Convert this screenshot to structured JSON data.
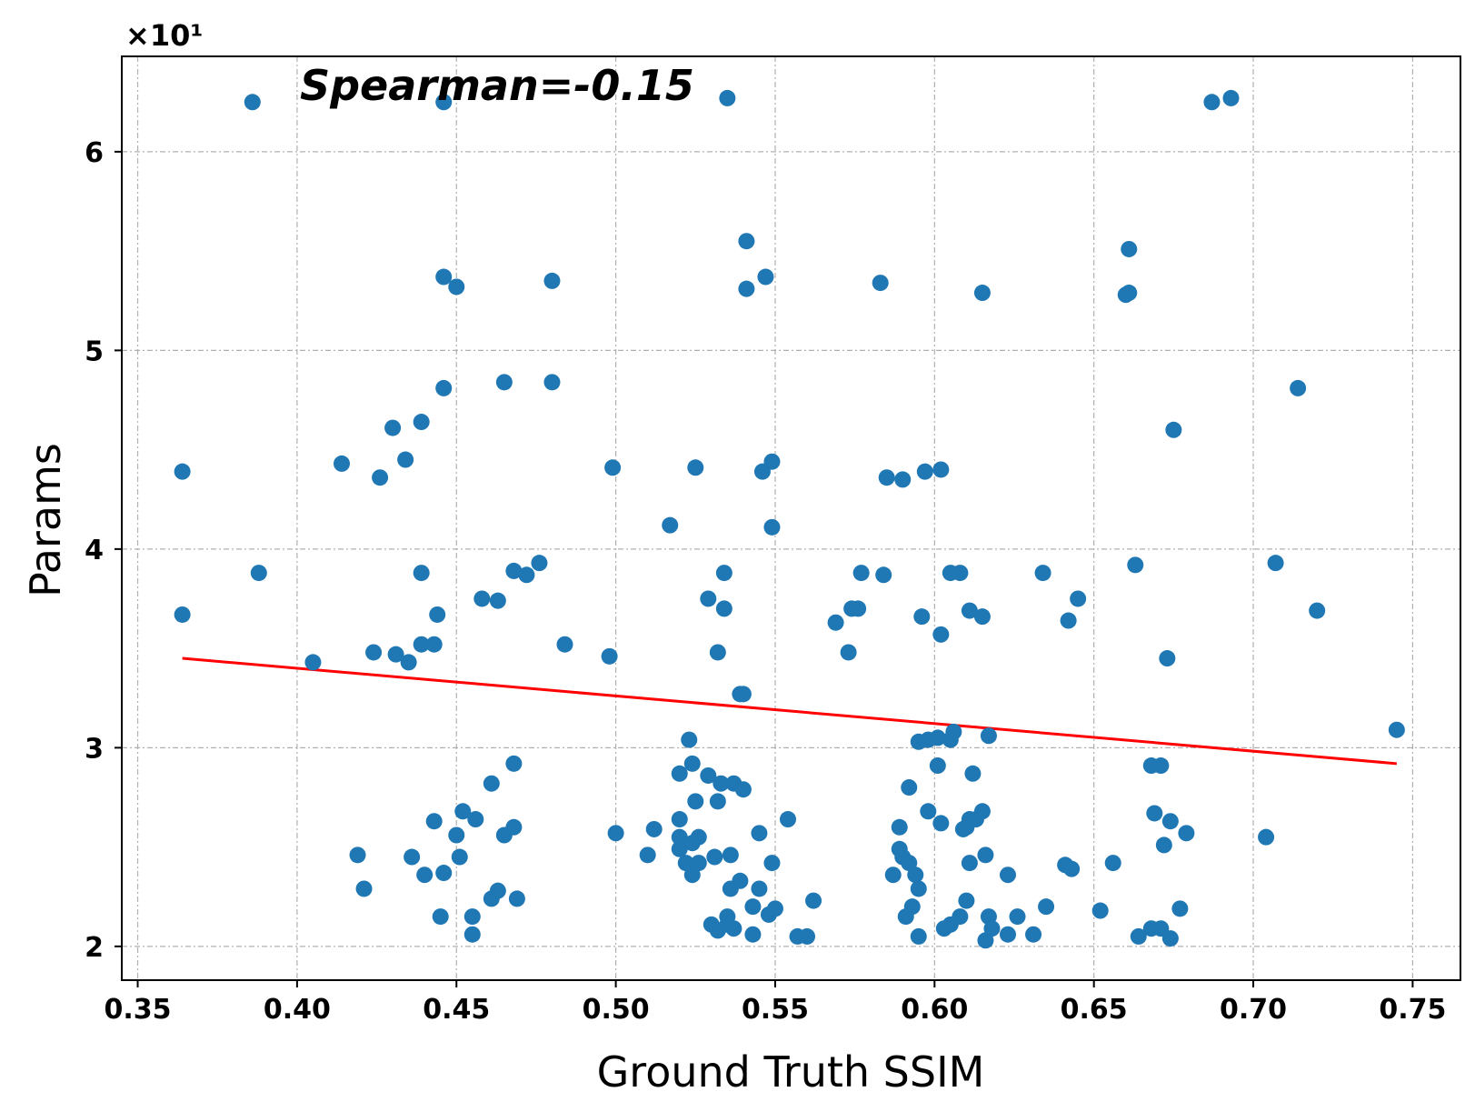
{
  "chart_data": {
    "type": "scatter",
    "title": "",
    "xlabel": "Ground Truth SSIM",
    "ylabel": "Params",
    "y_multiplier_label": "×10¹",
    "annotation": "Spearman=-0.15",
    "xlim": [
      0.345,
      0.765
    ],
    "ylim": [
      1.83,
      6.48
    ],
    "x_ticks": [
      0.35,
      0.4,
      0.45,
      0.5,
      0.55,
      0.6,
      0.65,
      0.7,
      0.75
    ],
    "x_tick_labels": [
      "0.35",
      "0.40",
      "0.45",
      "0.50",
      "0.55",
      "0.60",
      "0.65",
      "0.70",
      "0.75"
    ],
    "y_ticks": [
      2,
      3,
      4,
      5,
      6
    ],
    "y_tick_labels": [
      "2",
      "3",
      "4",
      "5",
      "6"
    ],
    "grid": true,
    "point_color": "#1f77b4",
    "trend_color": "#ff0000",
    "trend_line": {
      "x": [
        0.364,
        0.745
      ],
      "y": [
        3.45,
        2.92
      ]
    },
    "points": [
      [
        0.364,
        4.39
      ],
      [
        0.364,
        3.67
      ],
      [
        0.386,
        6.25
      ],
      [
        0.388,
        3.88
      ],
      [
        0.405,
        3.43
      ],
      [
        0.414,
        4.43
      ],
      [
        0.419,
        2.46
      ],
      [
        0.421,
        2.29
      ],
      [
        0.424,
        3.48
      ],
      [
        0.426,
        4.36
      ],
      [
        0.43,
        4.61
      ],
      [
        0.431,
        3.47
      ],
      [
        0.434,
        4.45
      ],
      [
        0.435,
        3.43
      ],
      [
        0.436,
        2.45
      ],
      [
        0.439,
        4.64
      ],
      [
        0.439,
        3.88
      ],
      [
        0.439,
        3.52
      ],
      [
        0.44,
        2.36
      ],
      [
        0.443,
        3.52
      ],
      [
        0.443,
        2.63
      ],
      [
        0.444,
        3.67
      ],
      [
        0.445,
        2.15
      ],
      [
        0.446,
        5.37
      ],
      [
        0.446,
        6.25
      ],
      [
        0.446,
        4.81
      ],
      [
        0.446,
        2.37
      ],
      [
        0.45,
        5.32
      ],
      [
        0.45,
        2.56
      ],
      [
        0.451,
        2.45
      ],
      [
        0.452,
        2.68
      ],
      [
        0.455,
        2.15
      ],
      [
        0.455,
        2.06
      ],
      [
        0.456,
        2.64
      ],
      [
        0.458,
        3.75
      ],
      [
        0.461,
        2.82
      ],
      [
        0.461,
        2.24
      ],
      [
        0.463,
        3.74
      ],
      [
        0.463,
        2.28
      ],
      [
        0.465,
        4.84
      ],
      [
        0.465,
        2.56
      ],
      [
        0.468,
        3.89
      ],
      [
        0.468,
        2.92
      ],
      [
        0.468,
        2.6
      ],
      [
        0.469,
        2.24
      ],
      [
        0.472,
        3.87
      ],
      [
        0.476,
        3.93
      ],
      [
        0.48,
        5.35
      ],
      [
        0.48,
        4.84
      ],
      [
        0.484,
        3.52
      ],
      [
        0.498,
        3.46
      ],
      [
        0.499,
        4.41
      ],
      [
        0.5,
        2.57
      ],
      [
        0.51,
        2.46
      ],
      [
        0.512,
        2.59
      ],
      [
        0.517,
        4.12
      ],
      [
        0.52,
        2.87
      ],
      [
        0.52,
        2.64
      ],
      [
        0.52,
        2.55
      ],
      [
        0.52,
        2.49
      ],
      [
        0.522,
        2.42
      ],
      [
        0.523,
        3.04
      ],
      [
        0.524,
        2.92
      ],
      [
        0.524,
        2.52
      ],
      [
        0.524,
        2.36
      ],
      [
        0.525,
        4.41
      ],
      [
        0.525,
        2.73
      ],
      [
        0.526,
        2.42
      ],
      [
        0.526,
        2.55
      ],
      [
        0.529,
        3.75
      ],
      [
        0.529,
        2.86
      ],
      [
        0.53,
        2.11
      ],
      [
        0.531,
        2.45
      ],
      [
        0.532,
        3.48
      ],
      [
        0.532,
        2.73
      ],
      [
        0.532,
        2.08
      ],
      [
        0.533,
        2.82
      ],
      [
        0.534,
        3.88
      ],
      [
        0.534,
        3.7
      ],
      [
        0.535,
        6.27
      ],
      [
        0.535,
        2.15
      ],
      [
        0.535,
        2.11
      ],
      [
        0.536,
        2.46
      ],
      [
        0.536,
        2.29
      ],
      [
        0.537,
        2.09
      ],
      [
        0.537,
        2.82
      ],
      [
        0.539,
        3.27
      ],
      [
        0.539,
        2.33
      ],
      [
        0.54,
        3.27
      ],
      [
        0.54,
        2.79
      ],
      [
        0.541,
        5.55
      ],
      [
        0.541,
        5.31
      ],
      [
        0.543,
        2.2
      ],
      [
        0.543,
        2.06
      ],
      [
        0.545,
        2.57
      ],
      [
        0.545,
        2.29
      ],
      [
        0.546,
        4.39
      ],
      [
        0.547,
        5.37
      ],
      [
        0.548,
        2.16
      ],
      [
        0.549,
        4.44
      ],
      [
        0.549,
        4.11
      ],
      [
        0.549,
        2.42
      ],
      [
        0.55,
        2.19
      ],
      [
        0.554,
        2.64
      ],
      [
        0.557,
        2.05
      ],
      [
        0.56,
        2.05
      ],
      [
        0.562,
        2.23
      ],
      [
        0.569,
        3.63
      ],
      [
        0.573,
        3.48
      ],
      [
        0.574,
        3.7
      ],
      [
        0.576,
        3.7
      ],
      [
        0.577,
        3.88
      ],
      [
        0.583,
        5.34
      ],
      [
        0.584,
        3.87
      ],
      [
        0.585,
        4.36
      ],
      [
        0.587,
        2.36
      ],
      [
        0.589,
        2.6
      ],
      [
        0.589,
        2.49
      ],
      [
        0.59,
        2.45
      ],
      [
        0.59,
        4.35
      ],
      [
        0.591,
        2.15
      ],
      [
        0.592,
        2.42
      ],
      [
        0.592,
        2.8
      ],
      [
        0.593,
        2.2
      ],
      [
        0.594,
        2.36
      ],
      [
        0.595,
        2.29
      ],
      [
        0.595,
        2.05
      ],
      [
        0.595,
        3.03
      ],
      [
        0.596,
        3.66
      ],
      [
        0.597,
        4.39
      ],
      [
        0.598,
        2.68
      ],
      [
        0.598,
        3.04
      ],
      [
        0.601,
        2.91
      ],
      [
        0.601,
        3.05
      ],
      [
        0.602,
        2.62
      ],
      [
        0.602,
        3.57
      ],
      [
        0.602,
        4.4
      ],
      [
        0.603,
        2.09
      ],
      [
        0.605,
        2.11
      ],
      [
        0.605,
        3.04
      ],
      [
        0.605,
        3.88
      ],
      [
        0.606,
        3.08
      ],
      [
        0.608,
        3.88
      ],
      [
        0.608,
        2.15
      ],
      [
        0.609,
        2.59
      ],
      [
        0.61,
        2.23
      ],
      [
        0.61,
        2.6
      ],
      [
        0.611,
        2.42
      ],
      [
        0.611,
        2.64
      ],
      [
        0.611,
        3.69
      ],
      [
        0.612,
        2.87
      ],
      [
        0.613,
        2.64
      ],
      [
        0.615,
        3.66
      ],
      [
        0.615,
        5.29
      ],
      [
        0.616,
        2.46
      ],
      [
        0.615,
        2.68
      ],
      [
        0.616,
        2.03
      ],
      [
        0.617,
        2.15
      ],
      [
        0.617,
        3.06
      ],
      [
        0.618,
        2.09
      ],
      [
        0.623,
        2.06
      ],
      [
        0.623,
        2.36
      ],
      [
        0.626,
        2.15
      ],
      [
        0.631,
        2.06
      ],
      [
        0.634,
        3.88
      ],
      [
        0.635,
        2.2
      ],
      [
        0.641,
        2.41
      ],
      [
        0.642,
        3.64
      ],
      [
        0.643,
        2.39
      ],
      [
        0.645,
        3.75
      ],
      [
        0.652,
        2.18
      ],
      [
        0.656,
        2.42
      ],
      [
        0.66,
        5.28
      ],
      [
        0.661,
        5.29
      ],
      [
        0.661,
        5.51
      ],
      [
        0.663,
        3.92
      ],
      [
        0.664,
        2.05
      ],
      [
        0.668,
        2.91
      ],
      [
        0.668,
        2.09
      ],
      [
        0.669,
        2.67
      ],
      [
        0.671,
        2.91
      ],
      [
        0.671,
        2.09
      ],
      [
        0.672,
        2.51
      ],
      [
        0.673,
        3.45
      ],
      [
        0.674,
        2.63
      ],
      [
        0.675,
        4.6
      ],
      [
        0.674,
        2.04
      ],
      [
        0.677,
        2.19
      ],
      [
        0.679,
        2.57
      ],
      [
        0.687,
        6.25
      ],
      [
        0.693,
        6.27
      ],
      [
        0.704,
        2.55
      ],
      [
        0.707,
        3.93
      ],
      [
        0.714,
        4.81
      ],
      [
        0.72,
        3.69
      ],
      [
        0.745,
        3.09
      ]
    ]
  }
}
